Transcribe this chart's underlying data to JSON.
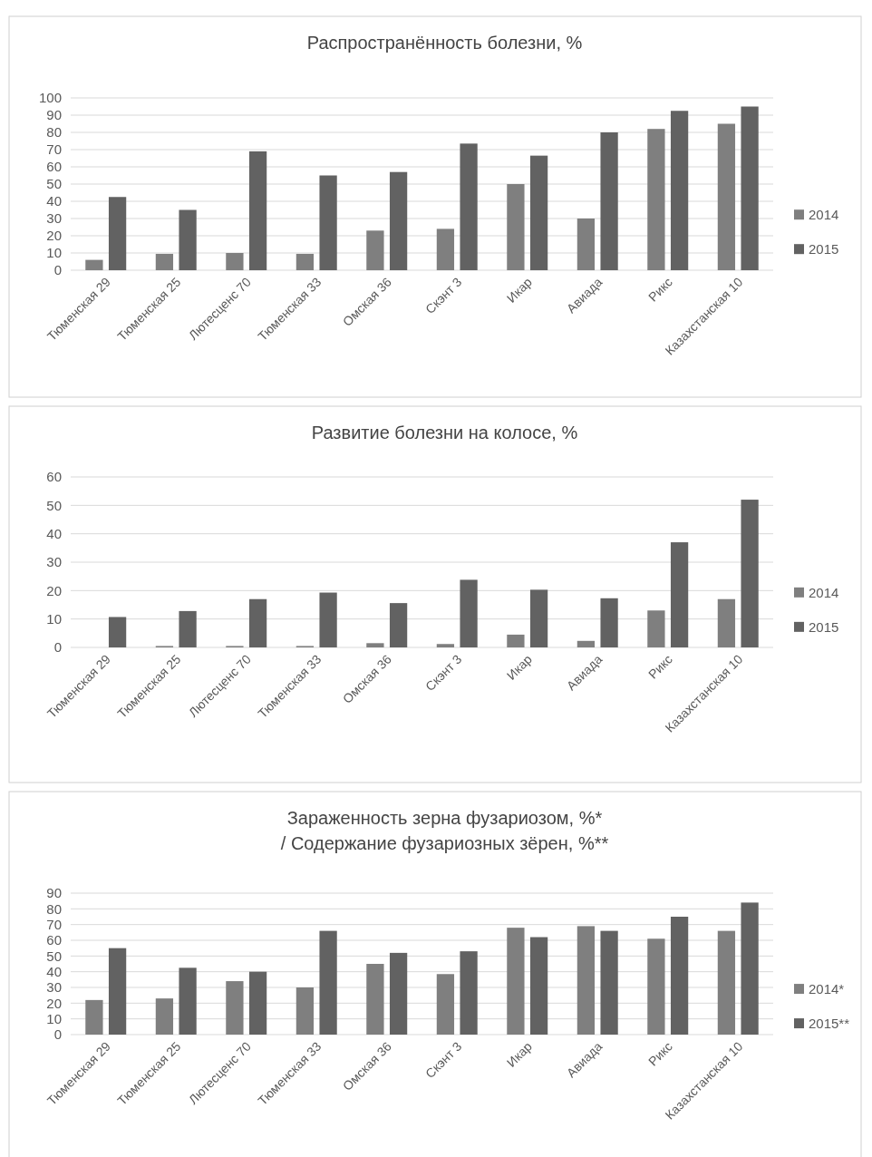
{
  "chart_data": [
    {
      "type": "bar",
      "title": "Распространённость болезни, %",
      "categories": [
        "Тюменская 29",
        "Тюменская 25",
        "Лютесценс 70",
        "Тюменская 33",
        "Омская 36",
        "Скэнт 3",
        "Икар",
        "Авиада",
        "Рикс",
        "Казахстанская 10"
      ],
      "series": [
        {
          "name": "2014",
          "color": "#7f7f7f",
          "values": [
            6,
            9.5,
            10,
            9.5,
            23,
            24,
            50,
            30,
            82,
            85
          ]
        },
        {
          "name": "2015",
          "color": "#626262",
          "values": [
            42.5,
            35,
            69,
            55,
            57,
            73.5,
            66.5,
            80,
            92.5,
            95
          ]
        }
      ],
      "ylim": [
        0,
        100
      ],
      "yticks": [
        0,
        10,
        20,
        30,
        40,
        50,
        60,
        70,
        80,
        90,
        100
      ],
      "grid": "y",
      "legend": "right"
    },
    {
      "type": "bar",
      "title": "Развитие болезни на колосе, %",
      "categories": [
        "Тюменская 29",
        "Тюменская 25",
        "Лютесценс 70",
        "Тюменская 33",
        "Омская 36",
        "Скэнт 3",
        "Икар",
        "Авиада",
        "Рикс",
        "Казахстанская 10"
      ],
      "series": [
        {
          "name": "2014",
          "color": "#7f7f7f",
          "values": [
            0,
            0.5,
            0.5,
            0.5,
            1.5,
            1.2,
            4.5,
            2.3,
            13,
            17
          ]
        },
        {
          "name": "2015",
          "color": "#626262",
          "values": [
            10.7,
            12.8,
            17,
            19.3,
            15.6,
            23.8,
            20.3,
            17.3,
            37,
            52
          ]
        }
      ],
      "ylim": [
        0,
        60
      ],
      "yticks": [
        0,
        10,
        20,
        30,
        40,
        50,
        60
      ],
      "grid": "y",
      "legend": "right"
    },
    {
      "type": "bar",
      "title": "Зараженность зерна фузариозом, %*\n/ Содержание фузариозных зёрен, %**",
      "categories": [
        "Тюменская 29",
        "Тюменская 25",
        "Лютесценс 70",
        "Тюменская 33",
        "Омская 36",
        "Скэнт 3",
        "Икар",
        "Авиада",
        "Рикс",
        "Казахстанская 10"
      ],
      "series": [
        {
          "name": "2014*",
          "color": "#7f7f7f",
          "values": [
            22,
            23,
            34,
            30,
            45,
            38.5,
            68,
            69,
            61,
            66
          ]
        },
        {
          "name": "2015**",
          "color": "#626262",
          "values": [
            55,
            42.5,
            40,
            66,
            52,
            53,
            62,
            66,
            75,
            84
          ]
        }
      ],
      "ylim": [
        0,
        90
      ],
      "yticks": [
        0,
        10,
        20,
        30,
        40,
        50,
        60,
        70,
        80,
        90
      ],
      "grid": "y",
      "legend": "right"
    }
  ]
}
